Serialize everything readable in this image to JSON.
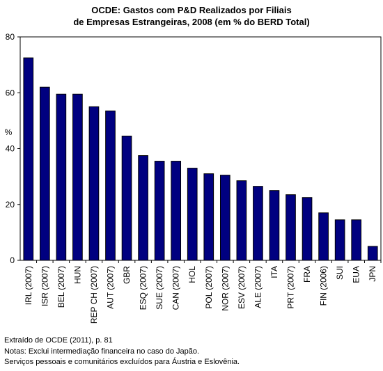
{
  "chart_data": {
    "type": "bar",
    "title_line1": "OCDE: Gastos com P&D Realizados por Filiais",
    "title_line2": "de Empresas Estrangeiras, 2008  (em % do BERD Total)",
    "ylabel": "%",
    "ylim": [
      0,
      80
    ],
    "yticks": [
      "0",
      "20",
      "40",
      "60",
      "80"
    ],
    "grid": false,
    "bar_color": "#000080",
    "categories": [
      "IRL (2007)",
      "ISR (2007)",
      "BEL (2007)",
      "HUN",
      "REP CH (2007)",
      "AUT (2007)",
      "GBR",
      "ESQ (2007)",
      "SUE (2007)",
      "CAN (2007)",
      "HOL",
      "POL (2007)",
      "NOR (2007)",
      "ESV (2007)",
      "ALE (2007)",
      "ITA",
      "PRT (2007)",
      "FRA",
      "FIN (2006)",
      "SUI",
      "EUA",
      "JPN"
    ],
    "values": [
      72.5,
      62,
      59.5,
      59.5,
      55,
      53.5,
      44.5,
      37.5,
      35.5,
      35.5,
      33,
      31,
      30.5,
      28.5,
      26.5,
      25,
      23.5,
      22.5,
      17,
      14.5,
      14.5,
      5
    ]
  },
  "footnotes": {
    "source": "Extraído de OCDE (2011), p. 81",
    "note1": "Notas: Exclui intermediação financeira no caso do Japão.",
    "note2": "Serviços pessoais e comunitários excluídos para Áustria e Eslovênia."
  }
}
